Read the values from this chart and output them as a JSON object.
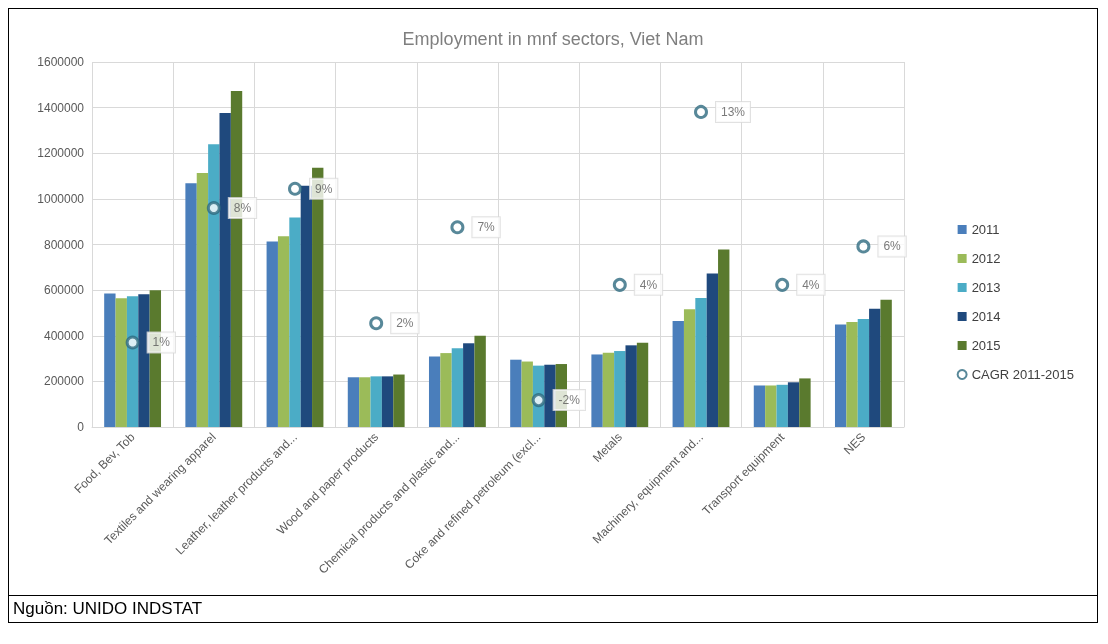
{
  "chart_data": {
    "type": "bar",
    "title": "Employment in mnf sectors, Viet Nam",
    "categories": [
      "Food, Bev, Tob",
      "Textiles and wearing apparel",
      "Leather, leather products and...",
      "Wood and paper products",
      "Chemical products and plastic and...",
      "Coke and refined petroleum (excl...",
      "Metals",
      "Machinery, equipment and...",
      "Transport equipment",
      "NES"
    ],
    "series": [
      {
        "name": "2011",
        "color": "#4a7ebb",
        "values": [
          585000,
          1069000,
          813000,
          218000,
          309000,
          295000,
          318000,
          465000,
          182000,
          449000
        ]
      },
      {
        "name": "2012",
        "color": "#9bbb59",
        "values": [
          564000,
          1113000,
          836000,
          218000,
          324000,
          287000,
          325000,
          516000,
          182000,
          460000
        ]
      },
      {
        "name": "2013",
        "color": "#4bacc6",
        "values": [
          573000,
          1240000,
          918000,
          222000,
          345000,
          269000,
          333000,
          565000,
          185000,
          473000
        ]
      },
      {
        "name": "2014",
        "color": "#1f497d",
        "values": [
          582000,
          1376000,
          1058000,
          222000,
          367000,
          273000,
          358000,
          673000,
          196000,
          518000
        ]
      },
      {
        "name": "2015",
        "color": "#5a7a2e",
        "values": [
          600000,
          1473000,
          1136000,
          230000,
          400000,
          276000,
          369000,
          778000,
          213000,
          558000
        ]
      },
      {
        "name": "CAGR 2011-2015",
        "type": "scatter",
        "axis": "y2",
        "marker": "circle",
        "color": "#2e6a80",
        "values": [
          1,
          8,
          9,
          2,
          7,
          -2,
          4,
          13,
          4,
          6
        ],
        "value_labels": [
          "1%",
          "8%",
          "9%",
          "2%",
          "7%",
          "-2%",
          "4%",
          "13%",
          "4%",
          "6%"
        ]
      }
    ],
    "ylim": [
      0,
      1600000
    ],
    "yticks": [
      0,
      200000,
      400000,
      600000,
      800000,
      1000000,
      1200000,
      1400000,
      1600000
    ],
    "y2lim": [
      -3.4,
      15.6
    ],
    "tick_labels": "xy",
    "grid": true,
    "legend": "right",
    "annotations": [
      "Nguồn: UNIDO INDSTAT"
    ]
  }
}
